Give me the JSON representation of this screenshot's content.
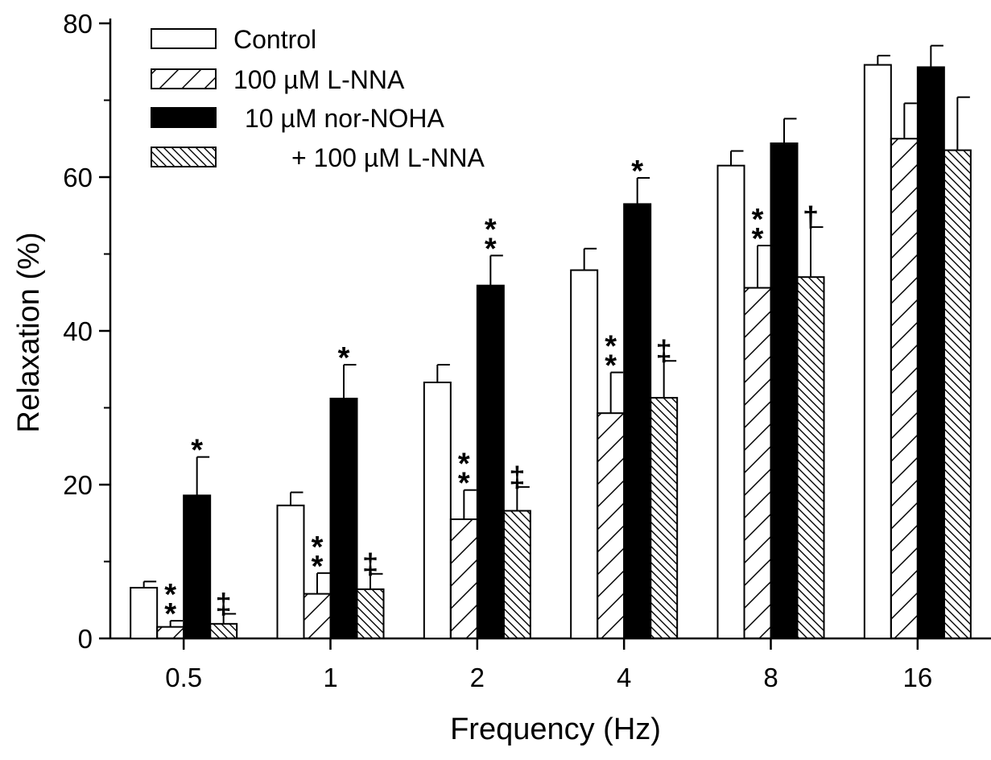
{
  "chart_data": {
    "type": "bar",
    "title": "",
    "xlabel": "Frequency (Hz)",
    "ylabel": "Relaxation (%)",
    "ylim": [
      0,
      80
    ],
    "yticks": [
      "0",
      "20",
      "40",
      "60",
      "80"
    ],
    "categories": [
      "0.5",
      "1",
      "2",
      "4",
      "8",
      "16"
    ],
    "grid": false,
    "legend_position": "top-left",
    "series": [
      {
        "name": "Control",
        "legend_label": "Control",
        "pattern": "open",
        "values": [
          6.6,
          17.3,
          33.3,
          47.9,
          61.5,
          74.6
        ],
        "errors": [
          0.8,
          1.7,
          2.3,
          2.8,
          1.9,
          1.2
        ],
        "markers": [
          "",
          "",
          "",
          "",
          "",
          ""
        ]
      },
      {
        "name": "100 µM L-NNA",
        "legend_label": "100 µM L-NNA",
        "pattern": "forward-hatch",
        "values": [
          1.5,
          5.8,
          15.5,
          29.3,
          45.6,
          65.0
        ],
        "errors": [
          0.8,
          2.7,
          3.8,
          5.3,
          5.5,
          4.6
        ],
        "markers": [
          "**",
          "**",
          "**",
          "**",
          "**",
          ""
        ]
      },
      {
        "name": "10 µM nor-NOHA",
        "legend_label": "10 µM nor-NOHA",
        "pattern": "solid",
        "values": [
          18.6,
          31.2,
          45.9,
          56.5,
          64.4,
          74.3
        ],
        "errors": [
          5.0,
          4.4,
          3.9,
          3.4,
          3.2,
          2.8
        ],
        "markers": [
          "*",
          "*",
          "**",
          "*",
          "",
          ""
        ]
      },
      {
        "name": "10 µM nor-NOHA + 100 µM L-NNA",
        "legend_label": "+ 100 µM L-NNA",
        "pattern": "back-hatch",
        "values": [
          1.9,
          6.4,
          16.6,
          31.3,
          47.0,
          63.5
        ],
        "errors": [
          1.3,
          2.0,
          3.1,
          4.8,
          6.5,
          6.9
        ],
        "markers": [
          "‡",
          "‡",
          "‡",
          "‡",
          "†",
          ""
        ]
      }
    ]
  }
}
